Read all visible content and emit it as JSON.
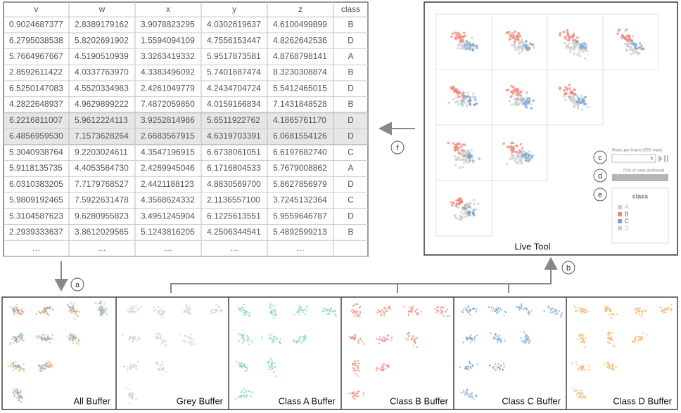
{
  "table": {
    "header": [
      "v",
      "w",
      "x",
      "y",
      "z",
      "class"
    ],
    "rows": [
      [
        "0.9024687377",
        "2.8389179162",
        "3.9078823295",
        "4.0302619637",
        "4.6100499899",
        "B"
      ],
      [
        "6.2795038538",
        "5.8202691902",
        "1.5594094109",
        "4.7556153447",
        "4.8262642536",
        "D"
      ],
      [
        "5.7664967667",
        "4.5190510939",
        "3.3263419332",
        "5.9517873581",
        "4.8768798141",
        "A"
      ],
      [
        "2.8592611422",
        "4.0337763970",
        "4.3383496092",
        "5.7401687474",
        "8.3230308874",
        "B"
      ],
      [
        "6.5250147083",
        "4.5520334983",
        "2.4261049779",
        "4.2434704724",
        "5.5412465015",
        "D"
      ],
      [
        "4.2822648937",
        "4.9629899222",
        "7.4872059850",
        "4.0159166834",
        "7.1431848528",
        "B"
      ],
      [
        "6.2216811007",
        "5.9612224113",
        "3.9252814986",
        "5.6511922762",
        "4.1865761170",
        "D"
      ],
      [
        "6.4856959530",
        "7.1573628264",
        "2.6683567915",
        "4.6319703391",
        "6.0681554126",
        "D"
      ],
      [
        "5.3040938764",
        "9.2203024611",
        "4.3547196915",
        "6.6738061051",
        "6.6197682740",
        "C"
      ],
      [
        "5.9118135735",
        "4.4053564730",
        "2.4269945046",
        "6.1716804533",
        "5.7679008862",
        "A"
      ],
      [
        "6.0310383205",
        "7.7179768527",
        "2.4421188123",
        "4.8830569700",
        "5.8627856979",
        "D"
      ],
      [
        "5.9809192465",
        "7.5922631478",
        "4.3568624332",
        "2.1136557100",
        "3.7245132364",
        "C"
      ],
      [
        "5.3104587623",
        "9.6280955823",
        "3.4951245904",
        "6.1225613551",
        "5.9559646787",
        "D"
      ],
      [
        "2.2939333637",
        "3.8612029565",
        "5.1243816205",
        "4.2506344541",
        "5.4892599213",
        "B"
      ],
      [
        "…",
        "…",
        "…",
        "…",
        "…"
      ]
    ]
  },
  "live_tool": {
    "title": "Live Tool",
    "rows_per_frame_label": "Rows per frame (900 max)",
    "rows_per_frame_value": "5",
    "animated_label": "72% of rows animated",
    "legend": {
      "title": "class",
      "items": [
        "A",
        "B",
        "C",
        "D"
      ]
    }
  },
  "buffers": [
    "All Buffer",
    "Grey Buffer",
    "Class A Buffer",
    "Class B Buffer",
    "Class C Buffer",
    "Class D Buffer"
  ],
  "callouts": [
    "a",
    "b",
    "c",
    "d",
    "e",
    "f"
  ]
}
